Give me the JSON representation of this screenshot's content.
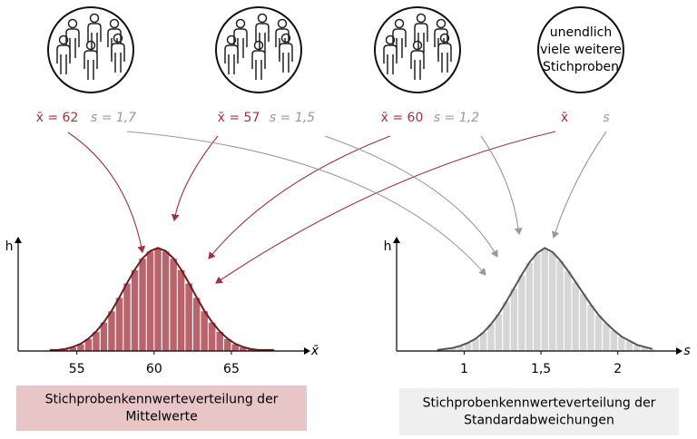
{
  "samples": [
    {
      "mean": "x̄ = 62",
      "sd": "s = 1,7"
    },
    {
      "mean": "x̄ = 57",
      "sd": "s = 1,5"
    },
    {
      "mean": "x̄ = 60",
      "sd": "s = 1,2"
    }
  ],
  "more_samples": {
    "label": [
      "unendlich",
      "viele weitere",
      "Stichproben"
    ],
    "mean": "x̄",
    "sd": "s"
  },
  "chart_data": [
    {
      "type": "histogram",
      "ylabel": "h",
      "xlabel": "x̄",
      "color": "#b8646c",
      "curve_color": "#6e1a22",
      "bins": [
        53,
        53.5,
        54,
        54.5,
        55,
        55.5,
        56,
        56.5,
        57,
        57.5,
        58,
        58.5,
        59,
        59.5,
        60,
        60.5,
        61,
        61.5,
        62,
        62.5,
        63,
        63.5,
        64,
        64.5,
        65,
        65.5,
        66,
        66.5,
        67,
        67.5,
        68
      ],
      "counts": [
        1,
        1,
        2,
        4,
        7,
        12,
        19,
        28,
        39,
        52,
        66,
        79,
        90,
        97,
        100,
        97,
        90,
        79,
        66,
        52,
        39,
        28,
        19,
        12,
        7,
        4,
        2,
        1,
        1,
        1
      ],
      "xlim": [
        51.2,
        69.7
      ],
      "xticks": [
        55,
        60,
        65
      ],
      "ylim": [
        0,
        110
      ],
      "caption": [
        "Stichprobenkennwerteverteilung der",
        "Mittelwerte"
      ],
      "caption_color": "#e8c6c8"
    },
    {
      "type": "histogram",
      "ylabel": "h",
      "xlabel": "s",
      "color": "#d6d6d6",
      "curve_color": "#555555",
      "bins": [
        0.8,
        0.85,
        0.9,
        0.95,
        1,
        1.05,
        1.1,
        1.15,
        1.2,
        1.25,
        1.3,
        1.35,
        1.4,
        1.45,
        1.5,
        1.55,
        1.6,
        1.65,
        1.7,
        1.75,
        1.8,
        1.85,
        1.9,
        1.95,
        2,
        2.05,
        2.1,
        2.15,
        2.2,
        2.25
      ],
      "counts": [
        1,
        2,
        3,
        5,
        8,
        12,
        18,
        26,
        36,
        48,
        61,
        74,
        86,
        95,
        100,
        96,
        88,
        78,
        67,
        56,
        45,
        35,
        27,
        20,
        14,
        10,
        6,
        4,
        2
      ],
      "xlim": [
        0.56,
        2.38
      ],
      "xticks": [
        1,
        {
          "value": 1.5,
          "label": "1,5"
        },
        2
      ],
      "ylim": [
        0,
        110
      ],
      "caption": [
        "Stichprobenkennwerteverteilung der",
        "Standardabweichungen"
      ],
      "caption_color": "#efefef"
    }
  ]
}
